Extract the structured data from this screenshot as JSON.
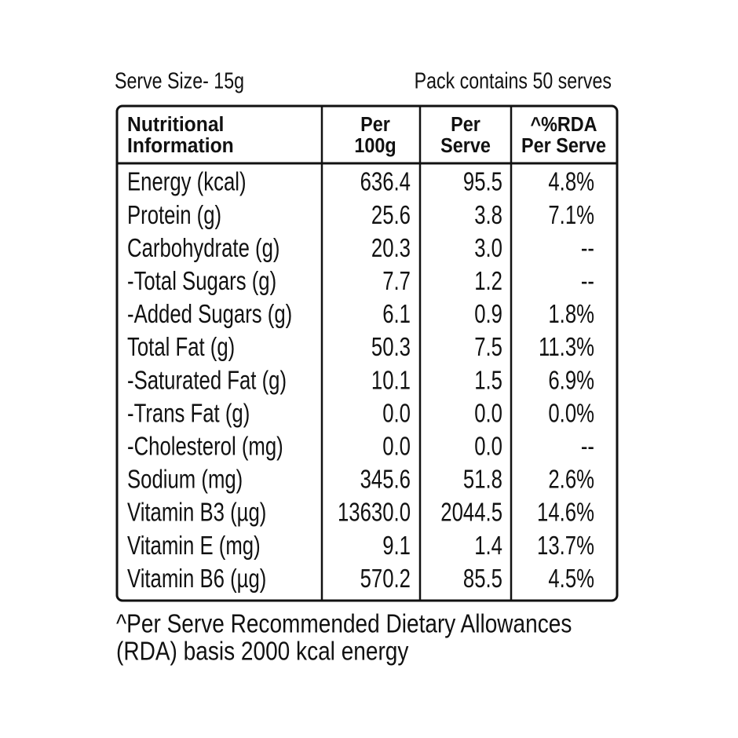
{
  "header": {
    "serve_size": "Serve Size- 15g",
    "pack": "Pack contains 50 serves"
  },
  "table": {
    "columns": [
      [
        "Nutritional",
        "Information"
      ],
      [
        "Per",
        "100g"
      ],
      [
        "Per",
        "Serve"
      ],
      [
        "^%RDA",
        "Per Serve"
      ]
    ],
    "rows": [
      [
        "Energy (kcal)",
        "636.4",
        "95.5",
        "4.8%"
      ],
      [
        "Protein (g)",
        "25.6",
        "3.8",
        "7.1%"
      ],
      [
        "Carbohydrate (g)",
        "20.3",
        "3.0",
        "--"
      ],
      [
        "-Total Sugars (g)",
        "7.7",
        "1.2",
        "--"
      ],
      [
        "-Added Sugars (g)",
        "6.1",
        "0.9",
        "1.8%"
      ],
      [
        "Total Fat (g)",
        "50.3",
        "7.5",
        "11.3%"
      ],
      [
        "-Saturated Fat (g)",
        "10.1",
        "1.5",
        "6.9%"
      ],
      [
        "-Trans Fat (g)",
        "0.0",
        "0.0",
        "0.0%"
      ],
      [
        "-Cholesterol (mg)",
        "0.0",
        "0.0",
        "--"
      ],
      [
        "Sodium (mg)",
        "345.6",
        "51.8",
        "2.6%"
      ],
      [
        "Vitamin B3 (µg)",
        "13630.0",
        "2044.5",
        "14.6%"
      ],
      [
        "Vitamin E (mg)",
        "9.1",
        "1.4",
        "13.7%"
      ],
      [
        "Vitamin B6 (µg)",
        "570.2",
        "85.5",
        "4.5%"
      ]
    ]
  },
  "footnote": [
    "^Per Serve Recommended Dietary Allowances",
    "(RDA) basis 2000 kcal energy"
  ]
}
